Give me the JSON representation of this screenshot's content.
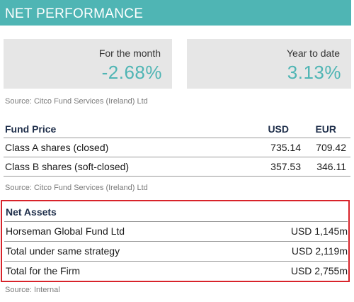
{
  "header": {
    "title": "NET PERFORMANCE"
  },
  "performance": {
    "month": {
      "label": "For the month",
      "value": "-2.68%"
    },
    "ytd": {
      "label": "Year to date",
      "value": "3.13%"
    }
  },
  "source_perf": "Source: Citco Fund Services (Ireland) Ltd",
  "fund_price": {
    "headers": {
      "name": "Fund Price",
      "usd": "USD",
      "eur": "EUR"
    },
    "rows": [
      {
        "name": "Class A shares (closed)",
        "usd": "735.14",
        "eur": "709.42"
      },
      {
        "name": "Class B shares (soft-closed)",
        "usd": "357.53",
        "eur": "346.11"
      }
    ]
  },
  "source_price": "Source:  Citco Fund Services (Ireland) Ltd",
  "net_assets": {
    "heading": "Net Assets",
    "rows": [
      {
        "name": "Horseman Global Fund Ltd",
        "value": "USD 1,145m"
      },
      {
        "name": "Total under same strategy",
        "value": "USD 2,119m"
      },
      {
        "name": "Total for the Firm",
        "value": "USD 2,755m"
      }
    ]
  },
  "source_assets": "Source: Internal",
  "colors": {
    "accent": "#4fb5b4",
    "highlight_border": "#d8232a",
    "panel": "#e6e6e6"
  }
}
